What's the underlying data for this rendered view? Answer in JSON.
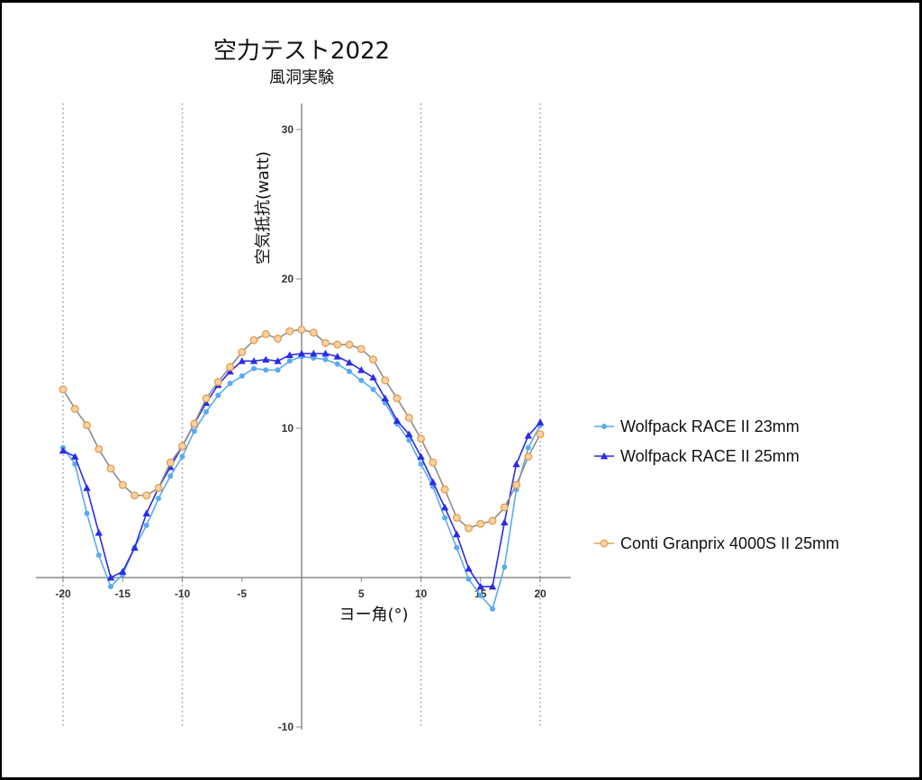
{
  "chart_data": {
    "type": "line",
    "title": "空力テスト2022",
    "subtitle": "風洞実験",
    "xlabel": "ヨー角(°)",
    "ylabel": "空気抵抗(watt)",
    "xlim": [
      -20,
      20
    ],
    "ylim": [
      -10,
      30
    ],
    "x_ticks": [
      "-20",
      "-15",
      "-10",
      "-5",
      "5",
      "10",
      "15",
      "20"
    ],
    "y_ticks": [
      "30",
      "20",
      "10",
      "-10"
    ],
    "gridlines_x": [
      -20,
      -10,
      10,
      20
    ],
    "legend_position": "right",
    "x": [
      -20,
      -19,
      -18,
      -17,
      -16,
      -15,
      -14,
      -13,
      -12,
      -11,
      -10,
      -9,
      -8,
      -7,
      -6,
      -5,
      -4,
      -3,
      -2,
      -1,
      0,
      1,
      2,
      3,
      4,
      5,
      6,
      7,
      8,
      9,
      10,
      11,
      12,
      13,
      14,
      15,
      16,
      17,
      18,
      19,
      20
    ],
    "series": [
      {
        "name": "Wolfpack RACE II 23mm",
        "color": "#5aaaf0",
        "marker": "circle",
        "values": [
          8.7,
          7.6,
          4.3,
          1.5,
          -0.6,
          0.2,
          2.0,
          3.5,
          5.3,
          6.8,
          8.1,
          9.8,
          11.1,
          12.2,
          13.0,
          13.5,
          14.0,
          13.9,
          13.9,
          14.5,
          14.8,
          14.7,
          14.6,
          14.3,
          13.8,
          13.2,
          12.6,
          11.7,
          10.3,
          9.2,
          7.6,
          6.1,
          4.0,
          2.0,
          -0.1,
          -1.2,
          -2.1,
          0.7,
          5.9,
          8.7,
          10.2
        ]
      },
      {
        "name": "Wolfpack RACE II 25mm",
        "color": "#2b2be8",
        "marker": "triangle",
        "values": [
          8.5,
          8.1,
          6.0,
          3.0,
          0.0,
          0.4,
          2.0,
          4.3,
          6.0,
          7.4,
          8.8,
          10.3,
          11.7,
          12.9,
          13.8,
          14.5,
          14.5,
          14.6,
          14.5,
          14.9,
          15.0,
          15.0,
          15.0,
          14.8,
          14.4,
          13.9,
          13.4,
          12.0,
          10.5,
          9.6,
          8.1,
          6.4,
          4.7,
          2.9,
          0.6,
          -0.6,
          -0.6,
          3.7,
          7.6,
          9.5,
          10.4
        ]
      },
      {
        "name": "Conti Granprix 4000S II  25mm",
        "color": "#e8a050",
        "marker": "circle-open",
        "values": [
          12.6,
          11.3,
          10.2,
          8.6,
          7.3,
          6.2,
          5.5,
          5.5,
          6.0,
          7.7,
          8.8,
          10.3,
          12.0,
          13.1,
          14.1,
          15.1,
          15.9,
          16.3,
          16.0,
          16.5,
          16.6,
          16.4,
          15.7,
          15.6,
          15.6,
          15.3,
          14.6,
          13.2,
          12.0,
          10.7,
          9.3,
          7.7,
          5.9,
          4.0,
          3.3,
          3.6,
          3.8,
          4.7,
          6.2,
          8.1,
          9.6
        ]
      }
    ]
  }
}
